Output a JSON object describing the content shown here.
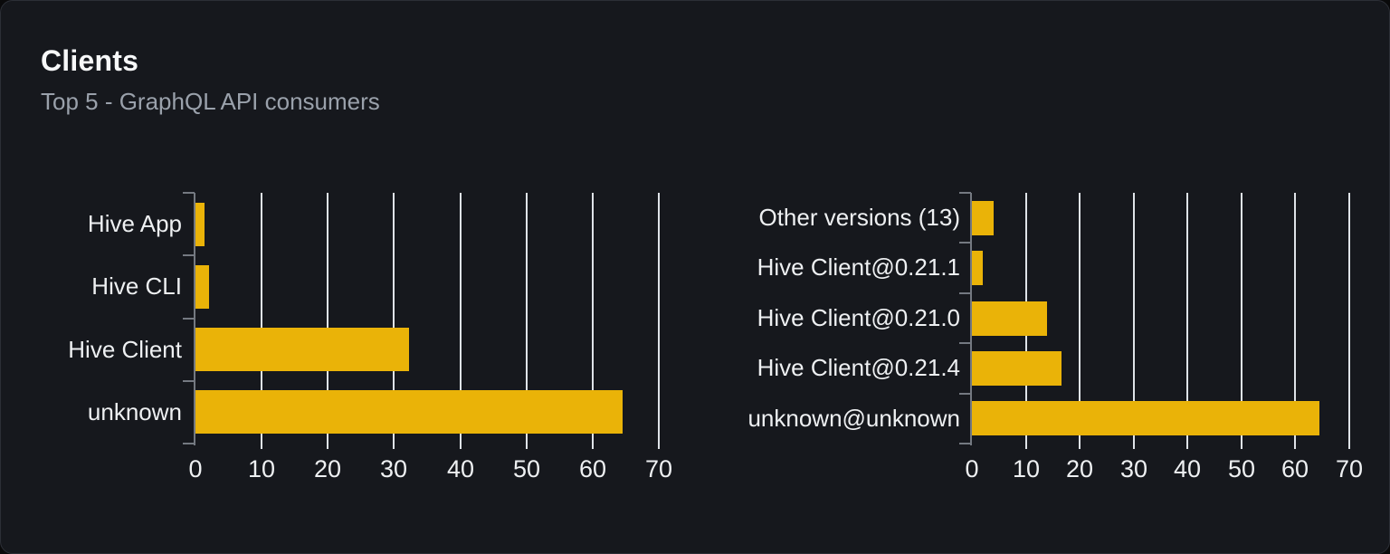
{
  "card": {
    "title": "Clients",
    "subtitle": "Top 5 - GraphQL API consumers"
  },
  "colors": {
    "bar": "#eab308",
    "card_background": "#16181d",
    "page_background": "#0a0a0b",
    "card_border": "#2c2f36",
    "gridline": "#dfe3e8",
    "axis_line": "#747981",
    "title_text": "#f7f8f9",
    "subtitle_text": "#9aa1ab",
    "axis_text": "#eef0f2"
  },
  "chart_data": [
    {
      "name": "clients-by-name",
      "type": "bar",
      "orientation": "horizontal",
      "categories": [
        "Hive App",
        "Hive CLI",
        "Hive Client",
        "unknown"
      ],
      "values": [
        1.4,
        2,
        32.2,
        64.5
      ],
      "xlim": [
        0,
        70
      ],
      "xticks": [
        0,
        10,
        20,
        30,
        40,
        50,
        60,
        70
      ],
      "xlabel": "",
      "ylabel": "",
      "grid": true,
      "legend": false
    },
    {
      "name": "clients-by-version",
      "type": "bar",
      "orientation": "horizontal",
      "categories": [
        "Other versions (13)",
        "Hive Client@0.21.1",
        "Hive Client@0.21.0",
        "Hive Client@0.21.4",
        "unknown@unknown"
      ],
      "values": [
        4.1,
        2,
        14,
        16.6,
        64.5
      ],
      "xlim": [
        0,
        70
      ],
      "xticks": [
        0,
        10,
        20,
        30,
        40,
        50,
        60,
        70
      ],
      "xlabel": "",
      "ylabel": "",
      "grid": true,
      "legend": false
    }
  ]
}
